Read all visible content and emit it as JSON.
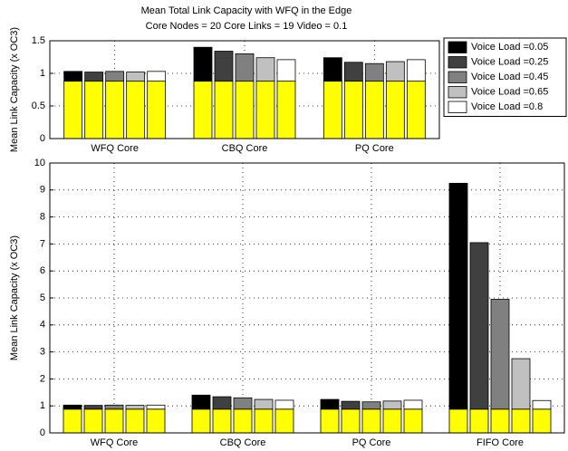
{
  "chart_data": [
    {
      "type": "bar",
      "title": "Mean Total Link Capacity with WFQ in the Edge",
      "subtitle": "Core Nodes = 20 Core Links = 19 Video = 0.1",
      "ylabel": "Mean Link Capacity (x OC3)",
      "categories": [
        "WFQ Core",
        "CBQ Core",
        "PQ Core"
      ],
      "ylim": [
        0,
        1.5
      ],
      "yticks": [
        0,
        0.5,
        1,
        1.5
      ],
      "grid": true,
      "legend": "right",
      "base_color": "#ffff00",
      "series": [
        {
          "name": "Voice Load =0.05",
          "color": "#000000",
          "base_values": [
            0.88,
            0.88,
            0.88
          ],
          "values": [
            0.15,
            0.52,
            0.36
          ]
        },
        {
          "name": "Voice Load =0.25",
          "color": "#404040",
          "base_values": [
            0.88,
            0.88,
            0.88
          ],
          "values": [
            0.14,
            0.46,
            0.29
          ]
        },
        {
          "name": "Voice Load =0.45",
          "color": "#808080",
          "base_values": [
            0.88,
            0.88,
            0.88
          ],
          "values": [
            0.15,
            0.42,
            0.27
          ]
        },
        {
          "name": "Voice Load =0.65",
          "color": "#c0c0c0",
          "base_values": [
            0.88,
            0.88,
            0.88
          ],
          "values": [
            0.14,
            0.36,
            0.3
          ]
        },
        {
          "name": "Voice Load =0.8",
          "color": "#ffffff",
          "base_values": [
            0.88,
            0.88,
            0.88
          ],
          "values": [
            0.15,
            0.33,
            0.33
          ]
        }
      ]
    },
    {
      "type": "bar",
      "ylabel": "Mean Link Capacity (x OC3)",
      "categories": [
        "WFQ Core",
        "CBQ Core",
        "PQ Core",
        "FIFO Core"
      ],
      "ylim": [
        0,
        10
      ],
      "yticks": [
        0,
        1,
        2,
        3,
        4,
        5,
        6,
        7,
        8,
        9,
        10
      ],
      "grid": true,
      "base_color": "#ffff00",
      "series": [
        {
          "color": "#000000",
          "base_values": [
            0.88,
            0.88,
            0.88,
            0.88
          ],
          "values": [
            0.15,
            0.52,
            0.36,
            8.37
          ]
        },
        {
          "color": "#404040",
          "base_values": [
            0.88,
            0.88,
            0.88,
            0.88
          ],
          "values": [
            0.14,
            0.46,
            0.29,
            6.17
          ]
        },
        {
          "color": "#808080",
          "base_values": [
            0.88,
            0.88,
            0.88,
            0.88
          ],
          "values": [
            0.15,
            0.42,
            0.27,
            4.07
          ]
        },
        {
          "color": "#c0c0c0",
          "base_values": [
            0.88,
            0.88,
            0.88,
            0.88
          ],
          "values": [
            0.14,
            0.36,
            0.3,
            1.87
          ]
        },
        {
          "color": "#ffffff",
          "base_values": [
            0.88,
            0.88,
            0.88,
            0.88
          ],
          "values": [
            0.15,
            0.33,
            0.33,
            0.32
          ]
        }
      ]
    }
  ]
}
